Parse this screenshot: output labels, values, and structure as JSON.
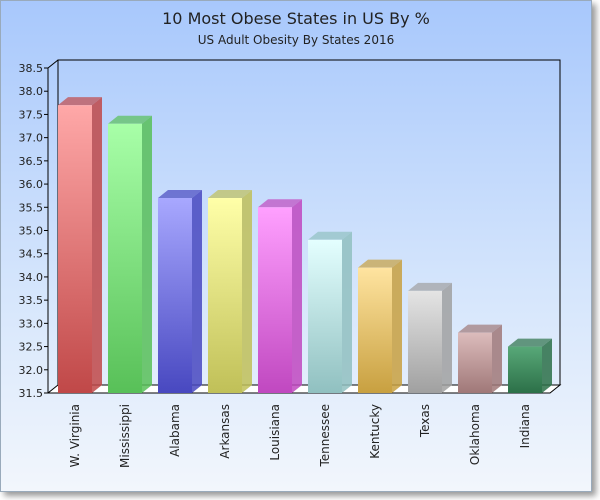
{
  "chart_data": {
    "type": "bar",
    "title": "10 Most Obese States in US By %",
    "subtitle": "US Adult Obesity By States 2016",
    "categories": [
      "W. Virginia",
      "Mississippi",
      "Alabama",
      "Arkansas",
      "Louisiana",
      "Tennessee",
      "Kentucky",
      "Texas",
      "Oklahoma",
      "Indiana"
    ],
    "values": [
      37.7,
      37.3,
      35.7,
      35.7,
      35.5,
      34.8,
      34.2,
      33.7,
      32.8,
      32.5
    ],
    "ylim": [
      31.5,
      38.5
    ],
    "yticks": [
      "31.5",
      "32.0",
      "32.5",
      "33.0",
      "33.5",
      "34.0",
      "34.5",
      "35.0",
      "35.5",
      "36.0",
      "36.5",
      "37.0",
      "37.5",
      "38.0",
      "38.5"
    ],
    "style": "3d",
    "colors": [
      [
        "#ffa8a8",
        "#c04848"
      ],
      [
        "#a8ffa8",
        "#58c058"
      ],
      [
        "#a8a8ff",
        "#4848c0"
      ],
      [
        "#ffffa8",
        "#c0c058"
      ],
      [
        "#ffa0ff",
        "#c048c0"
      ],
      [
        "#e4ffff",
        "#90c0c0"
      ],
      [
        "#ffe4a0",
        "#c8a040"
      ],
      [
        "#e4e4e4",
        "#a0a0a0"
      ],
      [
        "#dcbcbc",
        "#a07878"
      ],
      [
        "#58a878",
        "#2c7048"
      ]
    ]
  }
}
